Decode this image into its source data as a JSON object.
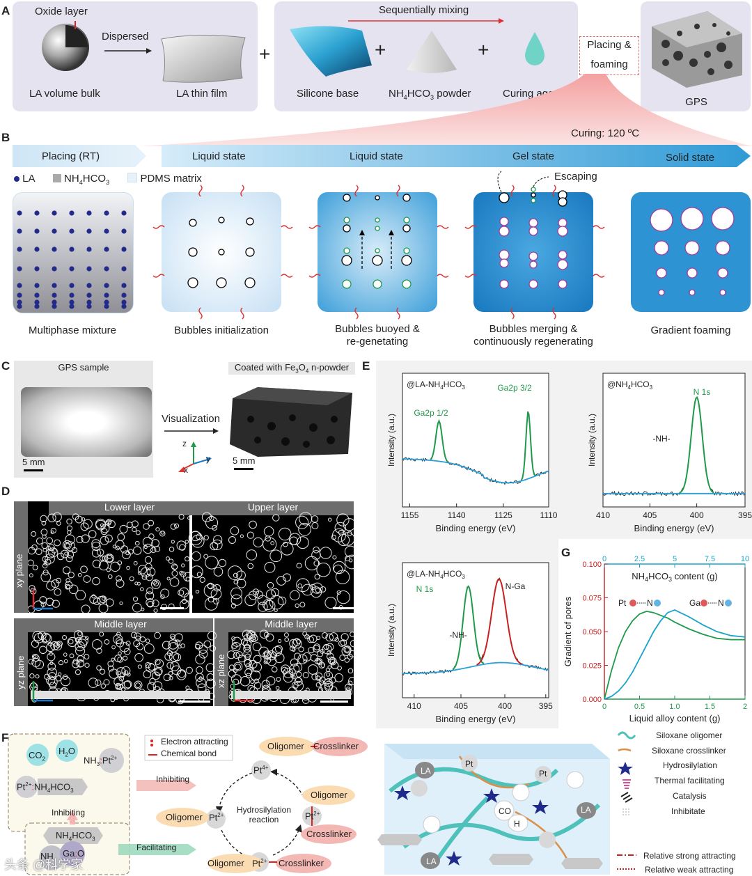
{
  "panels": {
    "a": "A",
    "b": "B",
    "c": "C",
    "d": "D",
    "e": "E",
    "f": "F",
    "g": "G"
  },
  "panelA": {
    "oxide_layer": "Oxide layer",
    "dispersed": "Dispersed",
    "la_bulk": "LA volume bulk",
    "la_film": "LA thin film",
    "seq_mixing": "Sequentially mixing",
    "silicone_base": "Silicone base",
    "nh4_powder_pre": "NH",
    "nh4_sub": "4",
    "nh4_mid": "HCO",
    "nh4_sub2": "3",
    "nh4_powder_post": " powder",
    "curing_agent": "Curing agent",
    "placing": "Placing &",
    "foaming": "foaming",
    "gps": "GPS",
    "plus": "+"
  },
  "panelB": {
    "curing": "Curing: 120 ºC",
    "stages": [
      "Placing (RT)",
      "Liquid state",
      "Liquid state",
      "Gel state",
      "Solid state"
    ],
    "legend_la": "LA",
    "legend_nh": "NH",
    "legend_nh_sub": "4",
    "legend_hco": "HCO",
    "legend_hco_sub": "3",
    "legend_pdms": "PDMS matrix",
    "escaping": "Escaping",
    "captions": [
      "Multiphase mixture",
      "Bubbles initialization",
      "Bubbles buoyed &",
      "re-genetating",
      "Bubbles merging &",
      "continuously regenerating",
      "Gradient foaming"
    ]
  },
  "panelC": {
    "gps_sample": "GPS sample",
    "coated_pre": "Coated with Fe",
    "coated_sub1": "3",
    "coated_mid": "O",
    "coated_sub2": "4",
    "coated_post": " n-powder",
    "visualization": "Visualization",
    "scale": "5 mm",
    "axis_z": "z",
    "axis_y": "y",
    "axis_x": "x"
  },
  "panelD": {
    "lower": "Lower layer",
    "upper": "Upper layer",
    "middle": "Middle layer",
    "xy": "xy plane",
    "yz": "yz plane",
    "xz": "xz plane"
  },
  "panelE": {
    "plot1": {
      "title_pre": "@LA-NH",
      "title_sub": "4",
      "title_post": "HCO",
      "title_sub2": "3",
      "peak1": "Ga2p 1/2",
      "peak2": "Ga2p 3/2",
      "ylabel": "Intensity (a.u.)",
      "xlabel": "Binding energy (eV)",
      "xticks": [
        "1155",
        "1140",
        "1125",
        "1110"
      ]
    },
    "plot2": {
      "title_pre": "@NH",
      "title_sub": "4",
      "title_post": "HCO",
      "title_sub2": "3",
      "peak1": "N 1s",
      "peak2": "-NH-",
      "ylabel": "Intensity (a.u.)",
      "xlabel": "Binding energy (eV)",
      "xticks": [
        "410",
        "405",
        "400",
        "395"
      ]
    },
    "plot3": {
      "title_pre": "@LA-NH",
      "title_sub": "4",
      "title_post": "HCO",
      "title_sub2": "3",
      "peak1": "N 1s",
      "peak2": "-NH-",
      "peak3": "N-Ga",
      "ylabel": "Intensity (a.u.)",
      "xlabel": "Binding energy (eV)",
      "xticks": [
        "410",
        "405",
        "400",
        "395"
      ]
    }
  },
  "chart_data": {
    "type": "line",
    "xlabel": "Liquid alloy content (g)",
    "x2label_pre": "NH",
    "x2label_sub": "4",
    "x2label_mid": "HCO",
    "x2label_sub2": "3",
    "x2label_post": " content (g)",
    "ylabel": "Gradient of pores",
    "xlim": [
      0,
      2
    ],
    "x2lim": [
      0,
      10
    ],
    "ylim": [
      0,
      0.1
    ],
    "xticks": [
      "0",
      "0.5",
      "1.0",
      "1.5",
      "2"
    ],
    "x2ticks": [
      "0",
      "2.5",
      "5",
      "7.5",
      "10"
    ],
    "yticks": [
      "0.000",
      "0.025",
      "0.050",
      "0.075",
      "0.100"
    ],
    "series": [
      {
        "name": "Pt···N",
        "axis": "bottom",
        "color": "#1e9a4a",
        "x": [
          0,
          0.1,
          0.2,
          0.3,
          0.4,
          0.5,
          0.6,
          0.7,
          0.8,
          0.9,
          1.0,
          1.2,
          1.4,
          1.6,
          1.8,
          2.0
        ],
        "y": [
          0.0,
          0.021,
          0.038,
          0.05,
          0.058,
          0.063,
          0.065,
          0.064,
          0.062,
          0.06,
          0.057,
          0.052,
          0.048,
          0.045,
          0.044,
          0.044
        ]
      },
      {
        "name": "Ga···N",
        "axis": "top",
        "color": "#1aa3c9",
        "x": [
          0,
          0.5,
          1,
          1.5,
          2,
          2.5,
          3,
          3.5,
          4,
          4.5,
          5,
          6,
          7,
          8,
          9,
          10
        ],
        "y": [
          0.0,
          0.002,
          0.006,
          0.012,
          0.02,
          0.03,
          0.04,
          0.05,
          0.058,
          0.064,
          0.066,
          0.061,
          0.055,
          0.05,
          0.047,
          0.046
        ]
      }
    ],
    "legend1_pre": "Pt",
    "legend1_post": "N",
    "legend2_pre": "Ga",
    "legend2_post": "N"
  },
  "panelF": {
    "co2": "CO",
    "co2_sub": "2",
    "h2o": "H",
    "h2o_sub": "2",
    "h2o_post": "O",
    "nh3pt": "NH",
    "nh3_sub": "3",
    "pt2": "Pt",
    "pt2nh": "Pt",
    "nh4hco3": "NH",
    "sub4": "4",
    "hco": "HCO",
    "sub3": "3",
    "inhibiting": "Inhibiting",
    "facilitating": "Facilitating",
    "electron": "Electron attracting",
    "chem_bond": "Chemical bond",
    "oligomer": "Oligomer",
    "crosslinker": "Crosslinker",
    "pt4": "Pt",
    "hydro1": "Hydrosilylation",
    "hydro2": "reaction",
    "ga2o3": "Ga",
    "ga_sub": "2",
    "ga_o": "O",
    "ga_sub2": "3",
    "nh_left": "NH",
    "legend": [
      "Siloxane oligomer",
      "Siloxane crosslinker",
      "Hydrosilylation",
      "Thermal facilitating",
      "Catalysis",
      "Inhibitate",
      "Relative strong attracting",
      "Relative weak attracting"
    ],
    "molecule_la": "LA",
    "molecule_pt": "Pt",
    "molecule_nh3": "NH",
    "molecule_co2": "CO",
    "molecule_h2o": "H",
    "watermark": "头条 @科学家"
  }
}
